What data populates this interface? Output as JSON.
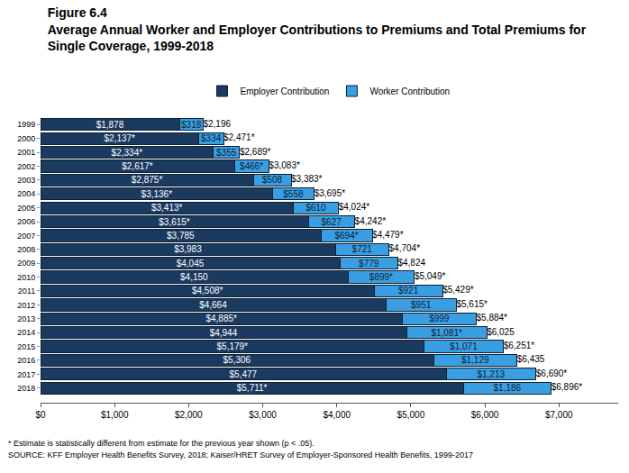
{
  "chart_data": {
    "type": "bar",
    "title": "Figure 6.4",
    "subtitle": [
      "Average Annual Worker and Employer Contributions to Premiums and Total Premiums for",
      "Single Coverage, 1999-2018"
    ],
    "orientation": "horizontal",
    "stacked": true,
    "data_labels": true,
    "grid": false,
    "legend": "top",
    "categories": [
      "1999",
      "2000",
      "2001",
      "2002",
      "2003",
      "2004",
      "2005",
      "2006",
      "2007",
      "2008",
      "2009",
      "2010",
      "2011",
      "2012",
      "2013",
      "2014",
      "2015",
      "2016",
      "2017",
      "2018"
    ],
    "series": [
      {
        "name": "Employer Contribution",
        "color": "#1b3a5f",
        "values": [
          1878,
          2137,
          2334,
          2617,
          2875,
          3136,
          3413,
          3615,
          3785,
          3983,
          4045,
          4150,
          4508,
          4664,
          4885,
          4944,
          5179,
          5306,
          5477,
          5711
        ],
        "value_labels": [
          "$1,878",
          "$2,137*",
          "$2,334*",
          "$2,617*",
          "$2,875*",
          "$3,136*",
          "$3,413*",
          "$3,615*",
          "$3,785",
          "$3,983",
          "$4,045",
          "$4,150",
          "$4,508*",
          "$4,664",
          "$4,885*",
          "$4,944",
          "$5,179*",
          "$5,306",
          "$5,477",
          "$5,711*"
        ]
      },
      {
        "name": "Worker Contribution",
        "color": "#3a9fe2",
        "values": [
          318,
          334,
          355,
          466,
          508,
          558,
          610,
          627,
          694,
          721,
          779,
          899,
          921,
          951,
          999,
          1081,
          1071,
          1129,
          1213,
          1186
        ],
        "value_labels": [
          "$318",
          "$334",
          "$355",
          "$466*",
          "$508",
          "$558",
          "$610",
          "$627",
          "$694*",
          "$721",
          "$779",
          "$899*",
          "$921",
          "$951",
          "$999",
          "$1,081*",
          "$1,071",
          "$1,129",
          "$1,213",
          "$1,186"
        ]
      }
    ],
    "totals": [
      2196,
      2471,
      2689,
      3083,
      3383,
      3695,
      4024,
      4242,
      4479,
      4704,
      4824,
      5049,
      5429,
      5615,
      5884,
      6025,
      6251,
      6435,
      6690,
      6896
    ],
    "total_labels": [
      "$2,196",
      "$2,471*",
      "$2,689*",
      "$3,083*",
      "$3,383*",
      "$3,695*",
      "$4,024*",
      "$4,242*",
      "$4,479*",
      "$4,704*",
      "$4,824",
      "$5,049*",
      "$5,429*",
      "$5,615*",
      "$5,884*",
      "$6,025",
      "$6,251*",
      "$6,435",
      "$6,690*",
      "$6,896*"
    ],
    "xlim": [
      0,
      7800
    ],
    "xticks": [
      {
        "value": 0,
        "label": "$0"
      },
      {
        "value": 1000,
        "label": "$1,000"
      },
      {
        "value": 2000,
        "label": "$2,000"
      },
      {
        "value": 3000,
        "label": "$3,000"
      },
      {
        "value": 4000,
        "label": "$4,000"
      },
      {
        "value": 5000,
        "label": "$5,000"
      },
      {
        "value": 6000,
        "label": "$6,000"
      },
      {
        "value": 7000,
        "label": "$7,000"
      }
    ],
    "notes": [
      "* Estimate is statistically different from estimate for the previous year shown (p < .05).",
      "SOURCE: KFF Employer Health Benefits Survey, 2018; Kaiser/HRET Survey of Employer-Sponsored Health Benefits, 1999-2017"
    ]
  }
}
